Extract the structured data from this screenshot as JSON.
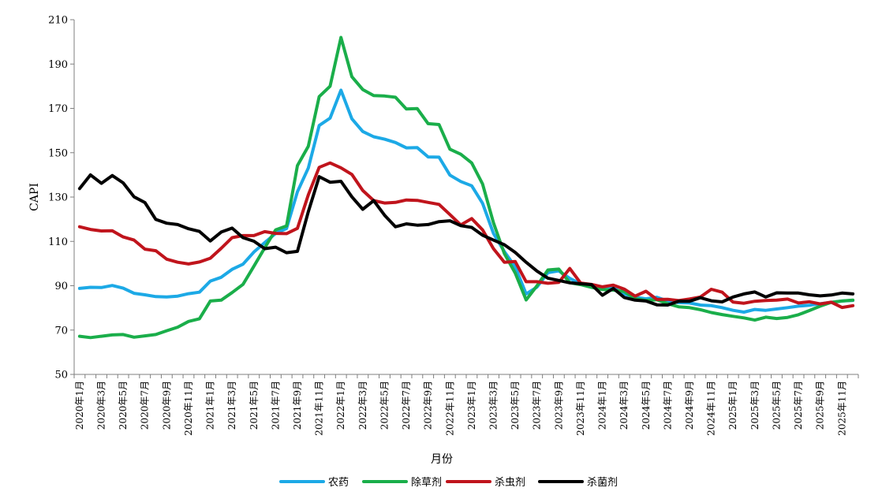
{
  "chart_data": {
    "type": "line",
    "xlabel": "月份",
    "ylabel": "CAPI",
    "ylim": [
      50,
      210
    ],
    "yticks": [
      50,
      70,
      90,
      110,
      130,
      150,
      170,
      190,
      210
    ],
    "grid": false,
    "legend_position": "bottom",
    "x": [
      "2020年1月",
      "2020年2月",
      "2020年3月",
      "2020年4月",
      "2020年5月",
      "2020年6月",
      "2020年7月",
      "2020年8月",
      "2020年9月",
      "2020年10月",
      "2020年11月",
      "2020年12月",
      "2021年1月",
      "2021年2月",
      "2021年3月",
      "2021年4月",
      "2021年5月",
      "2021年6月",
      "2021年7月",
      "2021年8月",
      "2021年9月",
      "2021年10月",
      "2021年11月",
      "2021年12月",
      "2022年1月",
      "2022年2月",
      "2022年3月",
      "2022年4月",
      "2022年5月",
      "2022年6月",
      "2022年7月",
      "2022年8月",
      "2022年9月",
      "2022年10月",
      "2022年11月",
      "2022年12月",
      "2023年1月",
      "2023年2月",
      "2023年3月",
      "2023年4月",
      "2023年5月",
      "2023年6月",
      "2023年7月",
      "2023年8月",
      "2023年9月",
      "2023年10月",
      "2023年11月",
      "2023年12月",
      "2024年1月",
      "2024年2月",
      "2024年3月",
      "2024年4月",
      "2024年5月",
      "2024年6月",
      "2024年7月",
      "2024年8月",
      "2024年9月",
      "2024年10月",
      "2024年11月",
      "2024年12月",
      "2025年1月",
      "2025年2月",
      "2025年3月",
      "2025年4月",
      "2025年5月",
      "2025年6月",
      "2025年7月",
      "2025年8月",
      "2025年9月",
      "2025年10月",
      "2025年11月",
      "2025年12月"
    ],
    "x_tick_labels": [
      "2020年1月",
      "2020年3月",
      "2020年5月",
      "2020年7月",
      "2020年9月",
      "2020年11月",
      "2021年1月",
      "2021年3月",
      "2021年5月",
      "2021年7月",
      "2021年9月",
      "2021年11月",
      "2022年1月",
      "2022年3月",
      "2022年5月",
      "2022年7月",
      "2022年9月",
      "2022年11月",
      "2023年1月",
      "2023年3月",
      "2023年5月",
      "2023年7月",
      "2023年9月",
      "2023年11月",
      "2024年1月",
      "2024年3月",
      "2024年5月",
      "2024年7月",
      "2024年9月",
      "2024年11月",
      "2025年1月",
      "2025年3月",
      "2025年5月",
      "2025年7月",
      "2025年9月",
      "2025年11月"
    ],
    "series": [
      {
        "name": "农药",
        "color": "#1CA9E6",
        "values": [
          88.8,
          89.3,
          89.2,
          90.1,
          88.9,
          86.6,
          85.9,
          85.1,
          84.9,
          85.3,
          86.4,
          87.1,
          92.1,
          93.8,
          97.4,
          99.7,
          105.2,
          109.5,
          113.6,
          115.8,
          132.4,
          143.1,
          162.3,
          165.6,
          178.2,
          165.3,
          159.6,
          157.2,
          156.1,
          154.6,
          152.2,
          152.3,
          148.1,
          148.0,
          139.9,
          137.0,
          135.1,
          127.2,
          113.6,
          105.4,
          98.5,
          86.3,
          89.4,
          95.9,
          96.7,
          93.3,
          90.9,
          90.1,
          88.6,
          89.1,
          86.3,
          84.8,
          84.1,
          84.8,
          83.1,
          82.4,
          82.2,
          81.3,
          81.0,
          80.1,
          78.9,
          78.1,
          79.3,
          78.9,
          79.5,
          80.1,
          80.8,
          81.2,
          81.9,
          82.5,
          83.1,
          83.4
        ]
      },
      {
        "name": "除草剂",
        "color": "#1AAE4A",
        "values": [
          67.2,
          66.6,
          67.2,
          67.8,
          68.0,
          66.8,
          67.4,
          68.0,
          69.7,
          71.3,
          73.9,
          75.1,
          83.1,
          83.5,
          86.9,
          90.6,
          98.8,
          107.1,
          115.2,
          117.0,
          144.2,
          152.9,
          175.3,
          180.0,
          202.0,
          184.3,
          178.5,
          175.8,
          175.6,
          175.0,
          169.7,
          169.9,
          163.1,
          162.7,
          151.6,
          149.3,
          145.4,
          135.9,
          118.4,
          104.5,
          95.7,
          83.6,
          90.0,
          97.1,
          97.5,
          91.4,
          90.5,
          89.3,
          88.3,
          88.0,
          87.4,
          84.2,
          83.3,
          83.7,
          81.9,
          80.5,
          80.1,
          79.2,
          77.9,
          77.0,
          76.2,
          75.5,
          74.5,
          75.8,
          75.2,
          75.7,
          76.9,
          78.8,
          80.8,
          82.5,
          83.1,
          83.5
        ]
      },
      {
        "name": "杀虫剂",
        "color": "#C0141C",
        "values": [
          116.6,
          115.4,
          114.7,
          114.8,
          112.0,
          110.6,
          106.5,
          105.8,
          102.0,
          100.6,
          99.8,
          100.7,
          102.4,
          106.9,
          111.7,
          112.6,
          112.6,
          114.4,
          113.6,
          113.5,
          115.9,
          131.0,
          143.4,
          145.4,
          143.2,
          140.2,
          133.0,
          128.4,
          127.3,
          127.6,
          128.7,
          128.5,
          127.6,
          126.7,
          122.1,
          117.4,
          120.3,
          115.2,
          106.7,
          100.6,
          100.9,
          91.8,
          91.8,
          91.1,
          91.5,
          97.8,
          91.2,
          90.6,
          89.5,
          90.3,
          88.5,
          85.3,
          87.5,
          83.8,
          83.9,
          83.3,
          84.0,
          84.9,
          88.4,
          87.1,
          82.6,
          82.1,
          83.0,
          83.3,
          83.5,
          84.0,
          82.2,
          82.8,
          81.8,
          82.6,
          80.2,
          81.0
        ]
      },
      {
        "name": "杀菌剂",
        "color": "#000000",
        "values": [
          133.8,
          140.0,
          136.2,
          139.7,
          136.4,
          130.1,
          127.5,
          119.9,
          118.2,
          117.6,
          115.7,
          114.5,
          110.2,
          114.2,
          116.0,
          111.7,
          110.1,
          106.7,
          107.4,
          104.9,
          105.5,
          123.4,
          139.2,
          136.7,
          137.1,
          130.1,
          124.5,
          128.4,
          121.8,
          116.6,
          117.9,
          117.3,
          117.6,
          118.9,
          119.3,
          117.1,
          116.3,
          112.8,
          110.6,
          108.5,
          105.0,
          100.6,
          96.6,
          93.4,
          92.4,
          91.3,
          90.9,
          90.5,
          85.7,
          88.8,
          84.7,
          83.5,
          83.1,
          81.4,
          81.3,
          83.0,
          83.0,
          84.6,
          83.2,
          82.7,
          84.9,
          86.3,
          87.2,
          84.9,
          86.8,
          86.7,
          86.7,
          85.9,
          85.4,
          85.8,
          86.7,
          86.3
        ]
      }
    ]
  }
}
